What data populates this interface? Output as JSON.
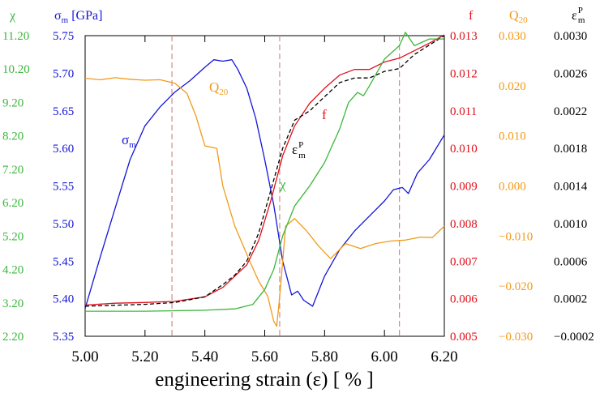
{
  "chart_data": {
    "type": "line",
    "title": "",
    "xlabel": "engineering strain (ε) [ % ]",
    "x_ticks": [
      "5.00",
      "5.20",
      "5.40",
      "5.60",
      "5.80",
      "6.00",
      "6.20"
    ],
    "xlim": [
      5.0,
      6.2
    ],
    "grid": false,
    "dashed_vertical_lines_x": [
      5.29,
      5.65,
      6.05
    ],
    "axes": {
      "chi": {
        "label": "χ",
        "color": "#3bb73b",
        "side": "left",
        "range": [
          2.2,
          11.2
        ],
        "ticks": [
          "2.20",
          "3.20",
          "4.20",
          "5.20",
          "6.20",
          "7.20",
          "8.20",
          "9.20",
          "10.20",
          "11.20"
        ]
      },
      "sigma": {
        "label": "σ",
        "label_sub": "m",
        "label_rest": " [GPa]",
        "color": "#1515d8",
        "side": "left",
        "range": [
          5.35,
          5.75
        ],
        "ticks": [
          "5.35",
          "5.40",
          "5.45",
          "5.50",
          "5.55",
          "5.60",
          "5.65",
          "5.70",
          "5.75"
        ]
      },
      "f": {
        "label": "f",
        "color": "#e0101a",
        "side": "right",
        "range": [
          0.005,
          0.013
        ],
        "ticks": [
          "0.005",
          "0.006",
          "0.007",
          "0.008",
          "0.009",
          "0.010",
          "0.011",
          "0.012",
          "0.013"
        ]
      },
      "q20": {
        "label": "Q",
        "label_sub": "20",
        "color": "#f29a1a",
        "side": "right",
        "range": [
          -0.03,
          0.03
        ],
        "ticks": [
          "−0.030",
          "−0.020",
          "−0.010",
          "0.000",
          "0.010",
          "0.020",
          "0.030"
        ]
      },
      "eps": {
        "label": "ε",
        "label_sub": "m",
        "label_sup": "P",
        "color": "#000000",
        "side": "right",
        "range": [
          -0.0002,
          0.003
        ],
        "ticks": [
          "−0.0002",
          "0.0002",
          "0.0006",
          "0.0010",
          "0.0014",
          "0.0018",
          "0.0022",
          "0.0026",
          "0.0030"
        ]
      }
    },
    "series": [
      {
        "key": "sigma",
        "color": "#1515d8",
        "dash": "",
        "label": {
          "text": "σ",
          "sub": "m",
          "sup": ""
        },
        "points": [
          [
            5.0,
            5.387
          ],
          [
            5.05,
            5.455
          ],
          [
            5.1,
            5.52
          ],
          [
            5.15,
            5.585
          ],
          [
            5.2,
            5.63
          ],
          [
            5.25,
            5.655
          ],
          [
            5.3,
            5.675
          ],
          [
            5.35,
            5.69
          ],
          [
            5.4,
            5.708
          ],
          [
            5.43,
            5.718
          ],
          [
            5.46,
            5.716
          ],
          [
            5.49,
            5.718
          ],
          [
            5.51,
            5.705
          ],
          [
            5.54,
            5.68
          ],
          [
            5.57,
            5.64
          ],
          [
            5.6,
            5.585
          ],
          [
            5.63,
            5.525
          ],
          [
            5.66,
            5.45
          ],
          [
            5.69,
            5.405
          ],
          [
            5.71,
            5.41
          ],
          [
            5.73,
            5.398
          ],
          [
            5.76,
            5.39
          ],
          [
            5.8,
            5.43
          ],
          [
            5.85,
            5.465
          ],
          [
            5.9,
            5.49
          ],
          [
            5.95,
            5.51
          ],
          [
            6.0,
            5.53
          ],
          [
            6.03,
            5.545
          ],
          [
            6.06,
            5.548
          ],
          [
            6.08,
            5.54
          ],
          [
            6.11,
            5.567
          ],
          [
            6.15,
            5.585
          ],
          [
            6.2,
            5.618
          ]
        ]
      },
      {
        "key": "q20",
        "color": "#f29a1a",
        "dash": "",
        "label": {
          "text": "Q",
          "sub": "20",
          "sup": ""
        },
        "points": [
          [
            5.0,
            0.0215
          ],
          [
            5.05,
            0.0212
          ],
          [
            5.1,
            0.0216
          ],
          [
            5.15,
            0.0213
          ],
          [
            5.2,
            0.0211
          ],
          [
            5.25,
            0.0212
          ],
          [
            5.3,
            0.0205
          ],
          [
            5.34,
            0.0185
          ],
          [
            5.37,
            0.014
          ],
          [
            5.4,
            0.008
          ],
          [
            5.44,
            0.0075
          ],
          [
            5.46,
            0.0
          ],
          [
            5.5,
            -0.008
          ],
          [
            5.55,
            -0.015
          ],
          [
            5.58,
            -0.019
          ],
          [
            5.61,
            -0.022
          ],
          [
            5.63,
            -0.027
          ],
          [
            5.64,
            -0.028
          ],
          [
            5.65,
            -0.022
          ],
          [
            5.67,
            -0.008
          ],
          [
            5.7,
            -0.0065
          ],
          [
            5.74,
            -0.009
          ],
          [
            5.78,
            -0.012
          ],
          [
            5.82,
            -0.0145
          ],
          [
            5.87,
            -0.0115
          ],
          [
            5.92,
            -0.0125
          ],
          [
            5.97,
            -0.0115
          ],
          [
            6.02,
            -0.011
          ],
          [
            6.07,
            -0.0108
          ],
          [
            6.12,
            -0.0102
          ],
          [
            6.16,
            -0.0103
          ],
          [
            6.2,
            -0.008
          ]
        ]
      },
      {
        "key": "f",
        "color": "#e0101a",
        "dash": "",
        "label": {
          "text": "f",
          "sub": "",
          "sup": ""
        },
        "points": [
          [
            5.0,
            0.00583
          ],
          [
            5.1,
            0.00588
          ],
          [
            5.2,
            0.0059
          ],
          [
            5.3,
            0.00593
          ],
          [
            5.4,
            0.00605
          ],
          [
            5.46,
            0.0063
          ],
          [
            5.5,
            0.0066
          ],
          [
            5.54,
            0.0069
          ],
          [
            5.58,
            0.00755
          ],
          [
            5.62,
            0.0086
          ],
          [
            5.66,
            0.0098
          ],
          [
            5.7,
            0.0106
          ],
          [
            5.75,
            0.0112
          ],
          [
            5.8,
            0.0116
          ],
          [
            5.85,
            0.01195
          ],
          [
            5.9,
            0.0121
          ],
          [
            5.95,
            0.0121
          ],
          [
            6.0,
            0.0123
          ],
          [
            6.05,
            0.0124
          ],
          [
            6.1,
            0.0126
          ],
          [
            6.15,
            0.0128
          ],
          [
            6.2,
            0.01302
          ]
        ]
      },
      {
        "key": "eps",
        "color": "#000000",
        "dash": "5,3",
        "label": {
          "text": "ε",
          "sub": "m",
          "sup": "P"
        },
        "points": [
          [
            5.0,
            0.00012
          ],
          [
            5.1,
            0.00013
          ],
          [
            5.2,
            0.00014
          ],
          [
            5.3,
            0.00016
          ],
          [
            5.4,
            0.00022
          ],
          [
            5.46,
            0.00035
          ],
          [
            5.5,
            0.00045
          ],
          [
            5.54,
            0.0006
          ],
          [
            5.58,
            0.0009
          ],
          [
            5.62,
            0.00135
          ],
          [
            5.66,
            0.0018
          ],
          [
            5.7,
            0.0021
          ],
          [
            5.75,
            0.0022
          ],
          [
            5.8,
            0.00235
          ],
          [
            5.85,
            0.0025
          ],
          [
            5.9,
            0.00255
          ],
          [
            5.95,
            0.00255
          ],
          [
            6.0,
            0.00262
          ],
          [
            6.05,
            0.00265
          ],
          [
            6.1,
            0.0028
          ],
          [
            6.15,
            0.0029
          ],
          [
            6.2,
            0.003
          ]
        ]
      },
      {
        "key": "chi",
        "color": "#3bb73b",
        "dash": "",
        "label": {
          "text": "χ",
          "sub": "",
          "sup": ""
        },
        "points": [
          [
            5.0,
            2.95
          ],
          [
            5.2,
            2.95
          ],
          [
            5.4,
            2.98
          ],
          [
            5.5,
            3.02
          ],
          [
            5.56,
            3.15
          ],
          [
            5.6,
            3.6
          ],
          [
            5.63,
            4.2
          ],
          [
            5.66,
            5.2
          ],
          [
            5.7,
            6.1
          ],
          [
            5.75,
            6.7
          ],
          [
            5.8,
            7.4
          ],
          [
            5.85,
            8.4
          ],
          [
            5.88,
            9.2
          ],
          [
            5.91,
            9.5
          ],
          [
            5.93,
            9.4
          ],
          [
            5.95,
            9.7
          ],
          [
            6.0,
            10.5
          ],
          [
            6.05,
            10.9
          ],
          [
            6.07,
            11.3
          ],
          [
            6.1,
            10.9
          ],
          [
            6.15,
            11.1
          ],
          [
            6.2,
            11.1
          ]
        ]
      }
    ]
  }
}
